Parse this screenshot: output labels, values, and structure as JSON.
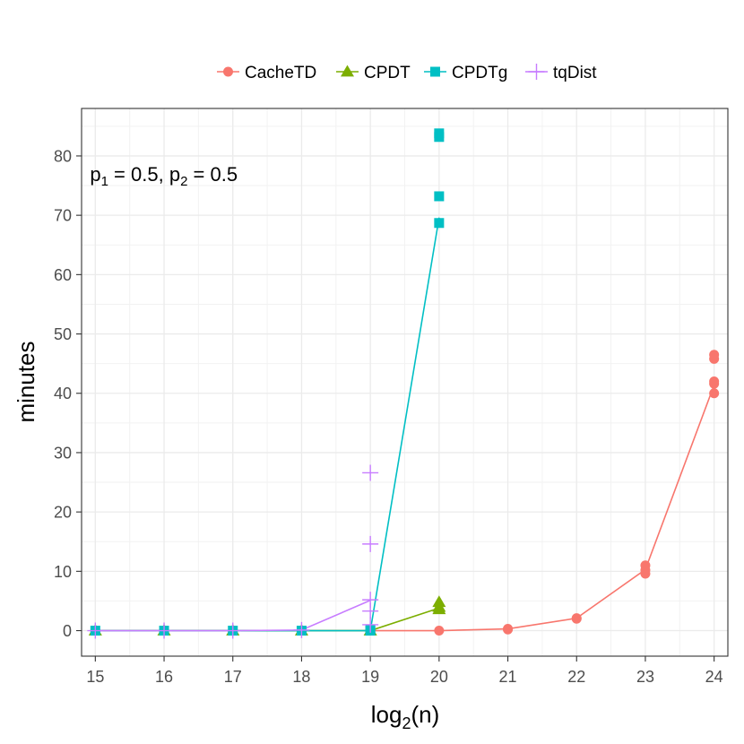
{
  "chart_data": {
    "type": "line",
    "xlabel": "log2(n)",
    "xlabel_base": "log",
    "xlabel_sub": "2",
    "xlabel_tail": "(n)",
    "ylabel": "minutes",
    "xlim": [
      14.8,
      24.2
    ],
    "ylim": [
      -4.3,
      88
    ],
    "x_ticks": [
      15,
      16,
      17,
      18,
      19,
      20,
      21,
      22,
      23,
      24
    ],
    "y_ticks": [
      0,
      10,
      20,
      30,
      40,
      50,
      60,
      70,
      80
    ],
    "legend_position": "top",
    "annotation": {
      "text": "p1 = 0.5, p2 = 0.5",
      "p1": "p",
      "s1": "1",
      "v1": " = 0.5, ",
      "p2": "p",
      "s2": "2",
      "v2": " = 0.5",
      "x": 15,
      "y": 77
    },
    "series": [
      {
        "name": "CacheTD",
        "color": "#F8766D",
        "marker": "circle",
        "line": {
          "x": [
            15,
            16,
            17,
            18,
            19,
            20,
            21,
            22,
            23,
            24
          ],
          "y": [
            0,
            0,
            0,
            0,
            0,
            0,
            0.3,
            2.1,
            10.3,
            41.4
          ]
        },
        "points": [
          [
            15,
            0
          ],
          [
            16,
            0
          ],
          [
            17,
            0
          ],
          [
            18,
            0
          ],
          [
            19,
            0
          ],
          [
            20,
            0
          ],
          [
            21,
            0.3
          ],
          [
            21,
            0.2
          ],
          [
            22,
            2.0
          ],
          [
            22,
            2.1
          ],
          [
            23,
            9.6
          ],
          [
            23,
            10.2
          ],
          [
            23,
            11.0
          ],
          [
            24,
            40.0
          ],
          [
            24,
            41.6
          ],
          [
            24,
            42.0
          ],
          [
            24,
            45.8
          ],
          [
            24,
            46.5
          ]
        ]
      },
      {
        "name": "CPDT",
        "color": "#7CAE00",
        "marker": "triangle",
        "line": {
          "x": [
            15,
            16,
            17,
            18,
            19,
            20
          ],
          "y": [
            0,
            0,
            0,
            0,
            0,
            3.8
          ]
        },
        "points": [
          [
            15,
            0
          ],
          [
            16,
            0
          ],
          [
            17,
            0
          ],
          [
            18,
            0
          ],
          [
            19,
            0
          ],
          [
            20,
            3.6
          ],
          [
            20,
            4.0
          ],
          [
            20,
            4.8
          ]
        ]
      },
      {
        "name": "CPDTg",
        "color": "#00BFC4",
        "marker": "square",
        "line": {
          "x": [
            15,
            16,
            17,
            18,
            19,
            20
          ],
          "y": [
            0,
            0,
            0,
            0,
            0,
            69.6
          ]
        },
        "points": [
          [
            15,
            0
          ],
          [
            16,
            0
          ],
          [
            17,
            0
          ],
          [
            18,
            0
          ],
          [
            19,
            0
          ],
          [
            19,
            0.1
          ],
          [
            20,
            68.7
          ],
          [
            20,
            73.2
          ],
          [
            20,
            83.2
          ],
          [
            20,
            83.8
          ]
        ]
      },
      {
        "name": "tqDist",
        "color": "#C77CFF",
        "marker": "plus",
        "line": {
          "x": [
            15,
            16,
            17,
            18,
            19
          ],
          "y": [
            0,
            0,
            0,
            0.1,
            5.1
          ]
        },
        "points": [
          [
            15,
            0
          ],
          [
            16,
            0
          ],
          [
            17,
            0
          ],
          [
            18,
            0.1
          ],
          [
            19,
            1.0
          ],
          [
            19,
            3.3
          ],
          [
            19,
            5.2
          ],
          [
            19,
            14.6
          ],
          [
            19,
            26.6
          ]
        ]
      }
    ]
  }
}
